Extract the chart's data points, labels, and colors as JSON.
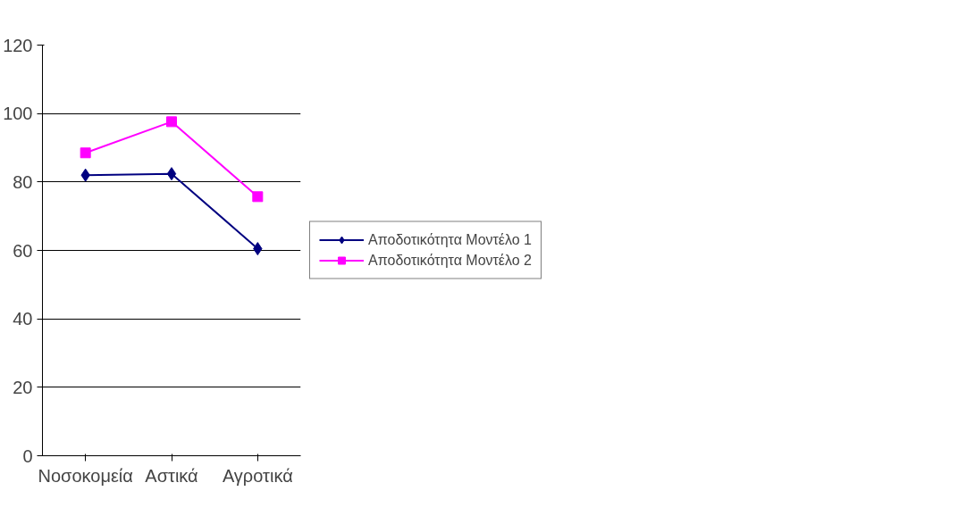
{
  "chart_data": {
    "type": "line",
    "categories": [
      "Νοσοκομεία",
      "Αστικά",
      "Αγροτικά"
    ],
    "series": [
      {
        "name": "Αποδοτικότητα Μοντέλο 1",
        "color": "#000080",
        "marker": "diamond",
        "values": [
          82,
          82.4,
          60.5
        ]
      },
      {
        "name": "Αποδοτικότητα Μοντέλο 2",
        "color": "#ff00ff",
        "marker": "square",
        "values": [
          88.5,
          97.6,
          75.7
        ]
      }
    ],
    "ylim": [
      0,
      120
    ],
    "yticks": [
      0,
      20,
      40,
      60,
      80,
      100,
      120
    ],
    "grid": "y",
    "legend": "right"
  }
}
